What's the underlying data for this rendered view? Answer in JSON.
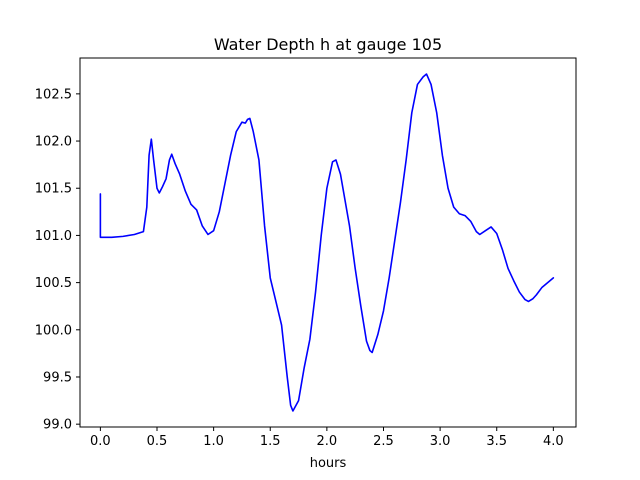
{
  "chart_data": {
    "type": "line",
    "title": "Water Depth h at gauge 105",
    "xlabel": "hours",
    "ylabel": "",
    "xlim": [
      -0.18,
      4.2
    ],
    "ylim": [
      98.97,
      102.88
    ],
    "xticks": [
      0.0,
      0.5,
      1.0,
      1.5,
      2.0,
      2.5,
      3.0,
      3.5,
      4.0
    ],
    "xtick_labels": [
      "0.0",
      "0.5",
      "1.0",
      "1.5",
      "2.0",
      "2.5",
      "3.0",
      "3.5",
      "4.0"
    ],
    "yticks": [
      99.0,
      99.5,
      100.0,
      100.5,
      101.0,
      101.5,
      102.0,
      102.5
    ],
    "ytick_labels": [
      "99.0",
      "99.5",
      "100.0",
      "100.5",
      "101.0",
      "101.5",
      "102.0",
      "102.5"
    ],
    "grid": false,
    "series": [
      {
        "color": "#0000ff",
        "points": [
          [
            0.0,
            101.44
          ],
          [
            0.0,
            100.98
          ],
          [
            0.1,
            100.98
          ],
          [
            0.2,
            100.99
          ],
          [
            0.3,
            101.01
          ],
          [
            0.38,
            101.04
          ],
          [
            0.41,
            101.3
          ],
          [
            0.43,
            101.85
          ],
          [
            0.45,
            102.02
          ],
          [
            0.47,
            101.8
          ],
          [
            0.5,
            101.5
          ],
          [
            0.52,
            101.45
          ],
          [
            0.55,
            101.52
          ],
          [
            0.58,
            101.6
          ],
          [
            0.61,
            101.8
          ],
          [
            0.63,
            101.86
          ],
          [
            0.66,
            101.76
          ],
          [
            0.7,
            101.65
          ],
          [
            0.75,
            101.47
          ],
          [
            0.8,
            101.33
          ],
          [
            0.85,
            101.27
          ],
          [
            0.9,
            101.1
          ],
          [
            0.95,
            101.01
          ],
          [
            1.0,
            101.05
          ],
          [
            1.05,
            101.25
          ],
          [
            1.1,
            101.55
          ],
          [
            1.15,
            101.85
          ],
          [
            1.2,
            102.1
          ],
          [
            1.25,
            102.2
          ],
          [
            1.28,
            102.19
          ],
          [
            1.3,
            102.23
          ],
          [
            1.32,
            102.24
          ],
          [
            1.35,
            102.1
          ],
          [
            1.4,
            101.8
          ],
          [
            1.45,
            101.1
          ],
          [
            1.5,
            100.55
          ],
          [
            1.55,
            100.3
          ],
          [
            1.6,
            100.05
          ],
          [
            1.65,
            99.5
          ],
          [
            1.68,
            99.2
          ],
          [
            1.7,
            99.14
          ],
          [
            1.75,
            99.25
          ],
          [
            1.8,
            99.6
          ],
          [
            1.85,
            99.9
          ],
          [
            1.9,
            100.4
          ],
          [
            1.95,
            101.0
          ],
          [
            2.0,
            101.5
          ],
          [
            2.05,
            101.78
          ],
          [
            2.08,
            101.8
          ],
          [
            2.12,
            101.65
          ],
          [
            2.2,
            101.1
          ],
          [
            2.25,
            100.65
          ],
          [
            2.3,
            100.25
          ],
          [
            2.35,
            99.88
          ],
          [
            2.38,
            99.78
          ],
          [
            2.4,
            99.76
          ],
          [
            2.45,
            99.95
          ],
          [
            2.5,
            100.2
          ],
          [
            2.55,
            100.55
          ],
          [
            2.6,
            100.95
          ],
          [
            2.65,
            101.35
          ],
          [
            2.7,
            101.8
          ],
          [
            2.75,
            102.3
          ],
          [
            2.8,
            102.6
          ],
          [
            2.85,
            102.68
          ],
          [
            2.88,
            102.71
          ],
          [
            2.92,
            102.6
          ],
          [
            2.97,
            102.3
          ],
          [
            3.02,
            101.85
          ],
          [
            3.07,
            101.5
          ],
          [
            3.12,
            101.3
          ],
          [
            3.17,
            101.23
          ],
          [
            3.22,
            101.21
          ],
          [
            3.27,
            101.15
          ],
          [
            3.32,
            101.04
          ],
          [
            3.35,
            101.01
          ],
          [
            3.4,
            101.05
          ],
          [
            3.45,
            101.09
          ],
          [
            3.5,
            101.02
          ],
          [
            3.55,
            100.85
          ],
          [
            3.6,
            100.65
          ],
          [
            3.65,
            100.52
          ],
          [
            3.7,
            100.4
          ],
          [
            3.75,
            100.32
          ],
          [
            3.78,
            100.3
          ],
          [
            3.82,
            100.33
          ],
          [
            3.85,
            100.37
          ],
          [
            3.9,
            100.45
          ],
          [
            3.95,
            100.5
          ],
          [
            4.0,
            100.55
          ]
        ]
      }
    ]
  }
}
